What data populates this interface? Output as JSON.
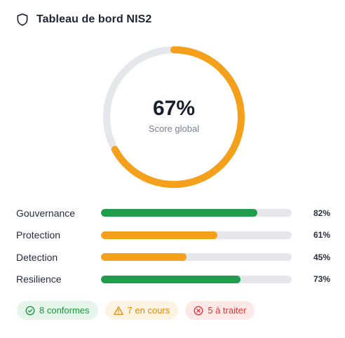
{
  "header": {
    "title": "Tableau de bord NIS2",
    "icon": "shield-icon"
  },
  "gauge": {
    "value": 67,
    "value_text": "67%",
    "label": "Score global",
    "color": "#f4a01a",
    "track_color": "#e6e7eb"
  },
  "domains": [
    {
      "label": "Gouvernance",
      "value": 82,
      "value_text": "82%",
      "color": "#1f9d4c"
    },
    {
      "label": "Protection",
      "value": 61,
      "value_text": "61%",
      "color": "#f4a01a"
    },
    {
      "label": "Detection",
      "value": 45,
      "value_text": "45%",
      "color": "#f4a01a"
    },
    {
      "label": "Resilience",
      "value": 73,
      "value_text": "73%",
      "color": "#1f9d4c"
    }
  ],
  "badges": {
    "ok": {
      "label": "8 conformes",
      "icon": "check-circle-icon",
      "color": "#21923f"
    },
    "warn": {
      "label": "7 en cours",
      "icon": "warning-triangle-icon",
      "color": "#e08a0b"
    },
    "err": {
      "label": "5 à traiter",
      "icon": "x-circle-icon",
      "color": "#d93a3a"
    }
  }
}
